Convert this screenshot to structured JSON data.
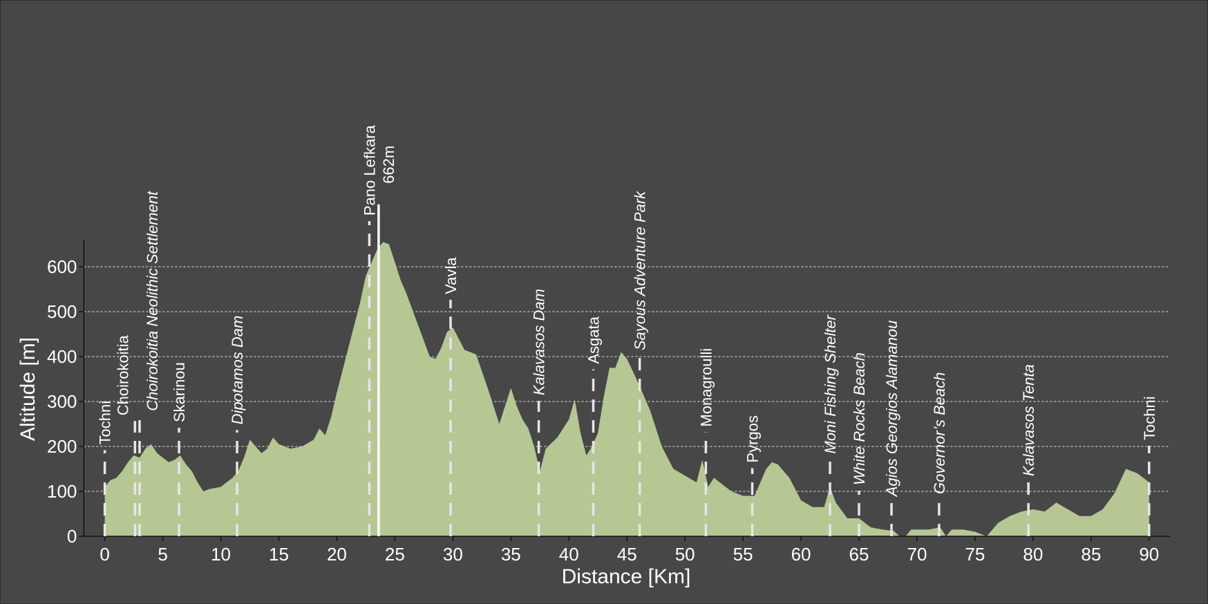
{
  "chart_data": {
    "type": "area",
    "x_label": "Distance [Km]",
    "y_label": "Altitude [m]",
    "color": "#b6c794",
    "grid": true,
    "xlim": [
      -1.8,
      91.8
    ],
    "ylim": [
      0,
      660
    ],
    "xticks": [
      0,
      5,
      10,
      15,
      20,
      25,
      30,
      35,
      40,
      45,
      50,
      55,
      60,
      65,
      70,
      75,
      80,
      85,
      90
    ],
    "yticks": [
      0,
      100,
      200,
      300,
      400,
      500,
      600
    ],
    "x": [
      0,
      0.5,
      1,
      1.5,
      2,
      2.5,
      3,
      3.5,
      4,
      4.5,
      5,
      5.5,
      6,
      6.5,
      7,
      7.5,
      8,
      8.5,
      9,
      10,
      11,
      11.5,
      12,
      12.5,
      13,
      13.5,
      14,
      14.5,
      15,
      16,
      17,
      18,
      18.5,
      19,
      19.5,
      20,
      21,
      22,
      22.5,
      23,
      23.5,
      24,
      24.5,
      25,
      25.5,
      26,
      27,
      28,
      28.5,
      29,
      29.5,
      30,
      30.5,
      31,
      32,
      33,
      34,
      34.5,
      35,
      35.5,
      36,
      36.5,
      37,
      37.5,
      38,
      39,
      40,
      40.5,
      41,
      41.5,
      42,
      42.5,
      43,
      43.5,
      44,
      44.5,
      45,
      46,
      47,
      48,
      49,
      50,
      51,
      51.5,
      52,
      52.5,
      54,
      55,
      56,
      57,
      57.5,
      58,
      59,
      60,
      61,
      62,
      62.5,
      63,
      64,
      65,
      66,
      67,
      68,
      68.5,
      69,
      69.5,
      71,
      72,
      72.5,
      73,
      74,
      75,
      76,
      77,
      78,
      79,
      80,
      81,
      82,
      83,
      84,
      85,
      86,
      87,
      88,
      89,
      90
    ],
    "values": [
      110,
      125,
      130,
      145,
      165,
      180,
      175,
      195,
      205,
      185,
      175,
      165,
      170,
      180,
      160,
      145,
      120,
      100,
      105,
      110,
      130,
      145,
      175,
      215,
      200,
      185,
      195,
      220,
      205,
      195,
      200,
      215,
      240,
      225,
      265,
      320,
      420,
      520,
      580,
      610,
      640,
      655,
      650,
      610,
      570,
      540,
      470,
      400,
      395,
      420,
      455,
      465,
      440,
      415,
      405,
      330,
      250,
      290,
      330,
      290,
      260,
      240,
      200,
      145,
      195,
      220,
      260,
      305,
      230,
      180,
      200,
      230,
      310,
      375,
      375,
      410,
      395,
      340,
      280,
      200,
      150,
      135,
      120,
      170,
      110,
      130,
      100,
      90,
      90,
      150,
      165,
      160,
      130,
      80,
      65,
      65,
      110,
      75,
      40,
      40,
      20,
      15,
      12,
      0,
      0,
      15,
      15,
      20,
      0,
      15,
      15,
      10,
      0,
      30,
      45,
      55,
      60,
      55,
      75,
      60,
      45,
      45,
      60,
      95,
      150,
      140,
      120
    ],
    "waypoints": [
      {
        "name": "Tochni",
        "km": 0,
        "italic": false
      },
      {
        "name": "Choirokoitia",
        "km": 2.6,
        "italic": false
      },
      {
        "name": "Choirokoitia Neolithic Settlement",
        "km": 3.0,
        "italic": true
      },
      {
        "name": "Skarinou",
        "km": 6.4,
        "italic": false
      },
      {
        "name": "Dipotamos Dam",
        "km": 11.4,
        "italic": true
      },
      {
        "name": "Pano Lefkara",
        "km": 22.8,
        "italic": false
      },
      {
        "name": "Vavla",
        "km": 29.8,
        "italic": false
      },
      {
        "name": "Kalavasos Dam",
        "km": 37.4,
        "italic": true
      },
      {
        "name": "Asgata",
        "km": 42.1,
        "italic": false
      },
      {
        "name": "Sayous Adventure Park",
        "km": 46.1,
        "italic": true
      },
      {
        "name": "Monagroulli",
        "km": 51.8,
        "italic": false
      },
      {
        "name": "Pyrgos",
        "km": 55.8,
        "italic": false
      },
      {
        "name": "Moni Fishing Shelter",
        "km": 62.5,
        "italic": true
      },
      {
        "name": "White Rocks Beach",
        "km": 65.0,
        "italic": true
      },
      {
        "name": "Agios Georgios Alamanou",
        "km": 67.8,
        "italic": true
      },
      {
        "name": "Governor’s Beach",
        "km": 71.9,
        "italic": true
      },
      {
        "name": "Kalavasos Tenta",
        "km": 79.6,
        "italic": true
      },
      {
        "name": "Tochni",
        "km": 90,
        "italic": false
      }
    ],
    "peak": {
      "km": 23.6,
      "altitude": 662,
      "label": "662m"
    }
  }
}
